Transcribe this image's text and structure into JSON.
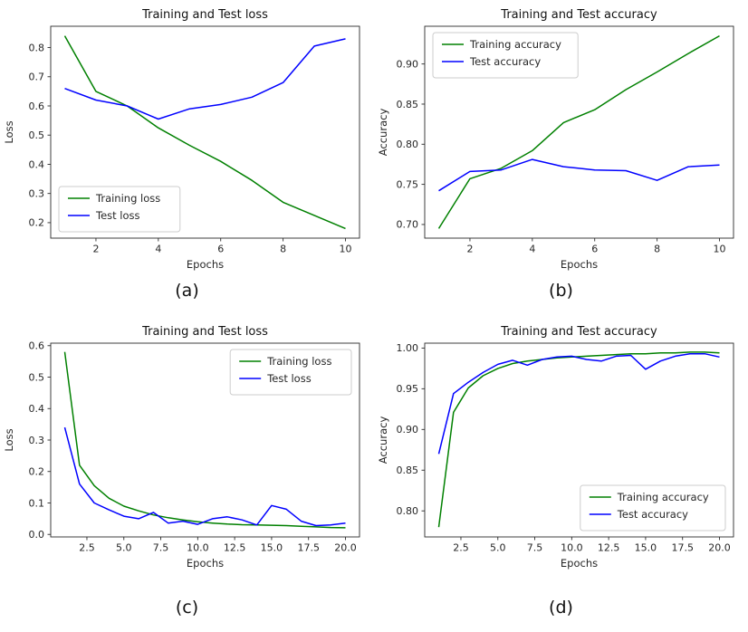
{
  "page": {
    "background": "#ffffff"
  },
  "colors": {
    "training": "#008000",
    "test": "#0000ff",
    "axis": "#262626",
    "legend_border": "#cccccc"
  },
  "chart_data": [
    {
      "type": "line",
      "title": "Training and Test loss",
      "xlabel": "Epochs",
      "ylabel": "Loss",
      "caption": "(a)",
      "grid": false,
      "legend_position": "lower-left",
      "x": [
        1,
        2,
        3,
        4,
        5,
        6,
        7,
        8,
        9,
        10
      ],
      "xlim": [
        0.55,
        10.45
      ],
      "ylim": [
        0.147,
        0.873
      ],
      "xticks": [
        2,
        4,
        6,
        8,
        10
      ],
      "xtick_labels": [
        "2",
        "4",
        "6",
        "8",
        "10"
      ],
      "yticks": [
        0.2,
        0.3,
        0.4,
        0.5,
        0.6,
        0.7,
        0.8
      ],
      "ytick_labels": [
        "0.2",
        "0.3",
        "0.4",
        "0.5",
        "0.6",
        "0.7",
        "0.8"
      ],
      "series": [
        {
          "key": "training",
          "name": "Training loss",
          "color": "#008000",
          "values": [
            0.84,
            0.65,
            0.6,
            0.525,
            0.465,
            0.41,
            0.345,
            0.27,
            0.225,
            0.18
          ]
        },
        {
          "key": "test",
          "name": "Test loss",
          "color": "#0000ff",
          "values": [
            0.66,
            0.62,
            0.6,
            0.555,
            0.59,
            0.605,
            0.63,
            0.68,
            0.805,
            0.83
          ]
        }
      ]
    },
    {
      "type": "line",
      "title": "Training and Test accuracy",
      "xlabel": "Epochs",
      "ylabel": "Accuracy",
      "caption": "(b)",
      "grid": false,
      "legend_position": "upper-left",
      "x": [
        1,
        2,
        3,
        4,
        5,
        6,
        7,
        8,
        9,
        10
      ],
      "xlim": [
        0.55,
        10.45
      ],
      "ylim": [
        0.683,
        0.947
      ],
      "xticks": [
        2,
        4,
        6,
        8,
        10
      ],
      "xtick_labels": [
        "2",
        "4",
        "6",
        "8",
        "10"
      ],
      "yticks": [
        0.7,
        0.75,
        0.8,
        0.85,
        0.9
      ],
      "ytick_labels": [
        "0.70",
        "0.75",
        "0.80",
        "0.85",
        "0.90"
      ],
      "series": [
        {
          "key": "training",
          "name": "Training accuracy",
          "color": "#008000",
          "values": [
            0.695,
            0.757,
            0.77,
            0.792,
            0.827,
            0.843,
            0.868,
            0.89,
            0.913,
            0.935
          ]
        },
        {
          "key": "test",
          "name": "Test accuracy",
          "color": "#0000ff",
          "values": [
            0.742,
            0.766,
            0.768,
            0.781,
            0.772,
            0.768,
            0.767,
            0.755,
            0.772,
            0.774
          ]
        }
      ]
    },
    {
      "type": "line",
      "title": "Training and Test loss",
      "xlabel": "Epochs",
      "ylabel": "Loss",
      "caption": "(c)",
      "grid": false,
      "legend_position": "upper-right",
      "x": [
        1,
        2,
        3,
        4,
        5,
        6,
        7,
        8,
        9,
        10,
        11,
        12,
        13,
        14,
        15,
        16,
        17,
        18,
        19,
        20
      ],
      "xlim": [
        0.05,
        20.95
      ],
      "ylim": [
        -0.008,
        0.608
      ],
      "xticks": [
        2.5,
        5.0,
        7.5,
        10.0,
        12.5,
        15.0,
        17.5,
        20.0
      ],
      "xtick_labels": [
        "2.5",
        "5.0",
        "7.5",
        "10.0",
        "12.5",
        "15.0",
        "17.5",
        "20.0"
      ],
      "yticks": [
        0.0,
        0.1,
        0.2,
        0.3,
        0.4,
        0.5,
        0.6
      ],
      "ytick_labels": [
        "0.0",
        "0.1",
        "0.2",
        "0.3",
        "0.4",
        "0.5",
        "0.6"
      ],
      "series": [
        {
          "key": "training",
          "name": "Training loss",
          "color": "#008000",
          "values": [
            0.58,
            0.22,
            0.155,
            0.115,
            0.09,
            0.075,
            0.062,
            0.053,
            0.046,
            0.04,
            0.036,
            0.033,
            0.031,
            0.03,
            0.029,
            0.028,
            0.026,
            0.024,
            0.022,
            0.021
          ]
        },
        {
          "key": "test",
          "name": "Test loss",
          "color": "#0000ff",
          "values": [
            0.34,
            0.16,
            0.1,
            0.078,
            0.058,
            0.05,
            0.07,
            0.036,
            0.042,
            0.032,
            0.05,
            0.056,
            0.046,
            0.03,
            0.092,
            0.08,
            0.042,
            0.028,
            0.03,
            0.036
          ]
        }
      ]
    },
    {
      "type": "line",
      "title": "Training and Test accuracy",
      "xlabel": "Epochs",
      "ylabel": "Accuracy",
      "caption": "(d)",
      "grid": false,
      "legend_position": "lower-right",
      "x": [
        1,
        2,
        3,
        4,
        5,
        6,
        7,
        8,
        9,
        10,
        11,
        12,
        13,
        14,
        15,
        16,
        17,
        18,
        19,
        20
      ],
      "xlim": [
        0.05,
        20.95
      ],
      "ylim": [
        0.768,
        1.006
      ],
      "xticks": [
        2.5,
        5.0,
        7.5,
        10.0,
        12.5,
        15.0,
        17.5,
        20.0
      ],
      "xtick_labels": [
        "2.5",
        "5.0",
        "7.5",
        "10.0",
        "12.5",
        "15.0",
        "17.5",
        "20.0"
      ],
      "yticks": [
        0.8,
        0.85,
        0.9,
        0.95,
        1.0
      ],
      "ytick_labels": [
        "0.80",
        "0.85",
        "0.90",
        "0.95",
        "1.00"
      ],
      "series": [
        {
          "key": "training",
          "name": "Training accuracy",
          "color": "#008000",
          "values": [
            0.78,
            0.921,
            0.951,
            0.966,
            0.975,
            0.981,
            0.984,
            0.986,
            0.988,
            0.989,
            0.99,
            0.991,
            0.992,
            0.993,
            0.993,
            0.994,
            0.994,
            0.995,
            0.995,
            0.994
          ]
        },
        {
          "key": "test",
          "name": "Test accuracy",
          "color": "#0000ff",
          "values": [
            0.87,
            0.944,
            0.958,
            0.97,
            0.98,
            0.985,
            0.979,
            0.986,
            0.989,
            0.99,
            0.986,
            0.984,
            0.99,
            0.991,
            0.974,
            0.984,
            0.99,
            0.993,
            0.993,
            0.989
          ]
        }
      ]
    }
  ]
}
